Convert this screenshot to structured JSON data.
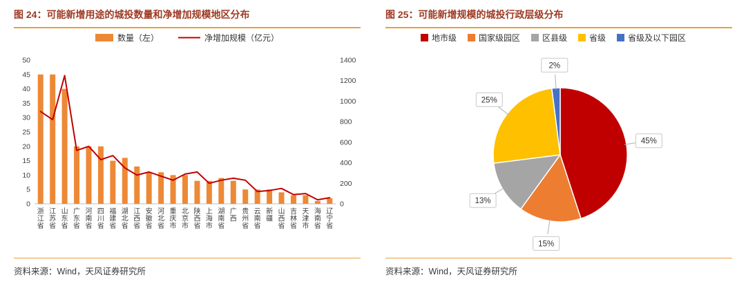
{
  "page": {
    "background": "#ffffff"
  },
  "colors": {
    "title": "#9E3A23",
    "accent": "#EE9C3D",
    "axis_text": "#404040",
    "source_text": "#3A3A3A"
  },
  "left_panel": {
    "title": "图 24：可能新增用途的城投数量和净增加规模地区分布",
    "source": "资料来源：Wind，天风证券研究所"
  },
  "right_panel": {
    "title": "图 25：可能新增规模的城投行政层级分布",
    "source": "资料来源：Wind，天风证券研究所"
  },
  "chart_data": [
    {
      "type": "bar",
      "title": "可能新增用途的城投数量和净增加规模地区分布",
      "legend_position": "top",
      "grid": false,
      "categories": [
        "浙江省",
        "江苏省",
        "山东省",
        "广东省",
        "河南省",
        "四川省",
        "福建省",
        "湖北省",
        "江西省",
        "安徽省",
        "河北省",
        "重庆市",
        "北京市",
        "陕西省",
        "上海市",
        "湖南省",
        "广西",
        "贵州省",
        "云南省",
        "新疆",
        "山西省",
        "吉林省",
        "天津市",
        "海南省",
        "辽宁省"
      ],
      "left_axis": {
        "min": 0,
        "max": 50,
        "step": 5
      },
      "right_axis": {
        "min": 0,
        "max": 1400,
        "step": 200
      },
      "series": [
        {
          "name": "数量（左）",
          "type": "bar",
          "axis": "left",
          "color": "#ED8936",
          "values": [
            45,
            45,
            40,
            20,
            20,
            20,
            15,
            16,
            13,
            11,
            11,
            10,
            10,
            8,
            8,
            9,
            8,
            5,
            5,
            5,
            4,
            3,
            3,
            1,
            2
          ]
        },
        {
          "name": "净增加规模（亿元）",
          "type": "line",
          "axis": "right",
          "color": "#C00000",
          "values": [
            900,
            820,
            1250,
            520,
            560,
            430,
            470,
            350,
            280,
            310,
            270,
            230,
            290,
            310,
            200,
            230,
            250,
            230,
            120,
            130,
            150,
            90,
            100,
            40,
            60
          ]
        }
      ]
    },
    {
      "type": "pie",
      "title": "可能新增规模的城投行政层级分布",
      "legend_position": "top",
      "direction": "clockwise",
      "start_angle_deg": 0,
      "label_format": "percent",
      "slices": [
        {
          "label": "地市级",
          "value": 45,
          "color": "#C00000"
        },
        {
          "label": "国家级园区",
          "value": 15,
          "color": "#ED7D31"
        },
        {
          "label": "区县级",
          "value": 13,
          "color": "#A5A5A5"
        },
        {
          "label": "省级",
          "value": 25,
          "color": "#FFC000"
        },
        {
          "label": "省级及以下园区",
          "value": 2,
          "color": "#4472C4"
        }
      ]
    }
  ]
}
